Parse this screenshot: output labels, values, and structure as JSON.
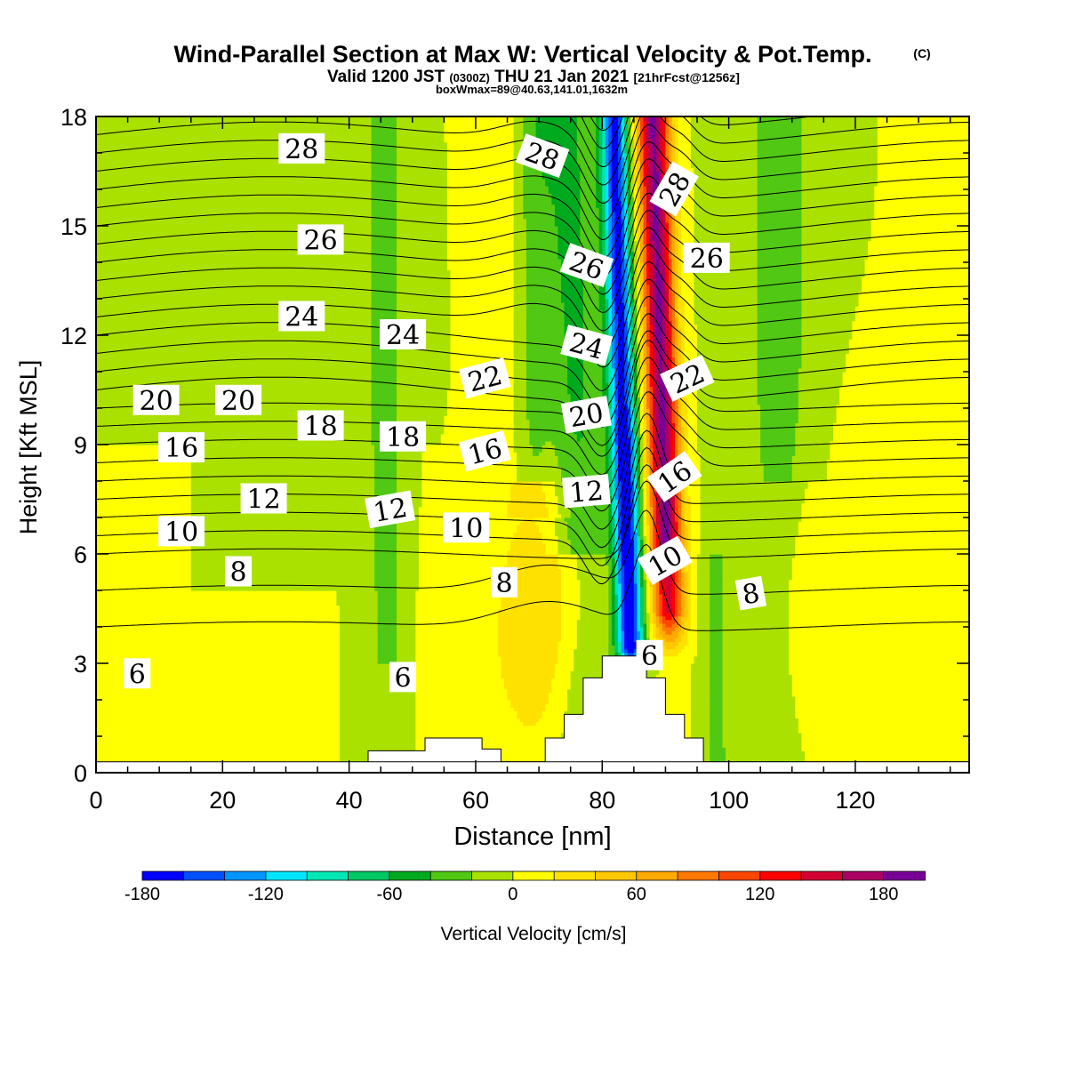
{
  "chart_data": {
    "type": "heatmap",
    "title": "Wind-Parallel Section at Max W: Vertical Velocity & Pot.Temp.",
    "title_mark": "(C)",
    "subtitle_prefix": "Valid 1200 JST",
    "subtitle_z": "(0300Z)",
    "subtitle_date": "THU 21 Jan 2021",
    "subtitle_fcst": "[21hrFcst@1256z]",
    "subtitle2": "boxWmax=89@40.63,141.01,1632m",
    "xlabel": "Distance [nm]",
    "ylabel": "Height [Kft MSL]",
    "xlim": [
      0,
      138
    ],
    "ylim": [
      0,
      18
    ],
    "x_ticks": [
      0,
      20,
      40,
      60,
      80,
      100,
      120
    ],
    "y_ticks": [
      0,
      3,
      6,
      9,
      12,
      15,
      18
    ],
    "colorbar": {
      "label": "Vertical Velocity [cm/s]",
      "range": [
        -180,
        200
      ],
      "step": 20,
      "tick_values": [
        -180,
        -120,
        -60,
        0,
        60,
        120,
        180
      ],
      "colors": [
        "#0000ff",
        "#0050ff",
        "#0096ff",
        "#00e6ff",
        "#00e6b4",
        "#00c864",
        "#00aa1e",
        "#50c814",
        "#aae100",
        "#ffff00",
        "#ffe100",
        "#ffc800",
        "#ffaa00",
        "#ff7800",
        "#ff4600",
        "#ff0000",
        "#d20032",
        "#aa0064",
        "#780096"
      ]
    },
    "terrain": [
      [
        41,
        0
      ],
      [
        41,
        0.25
      ],
      [
        43,
        0.25
      ],
      [
        43,
        0.6
      ],
      [
        52,
        0.6
      ],
      [
        52,
        0.95
      ],
      [
        61,
        0.95
      ],
      [
        61,
        0.65
      ],
      [
        64,
        0.65
      ],
      [
        64,
        0.3
      ],
      [
        71,
        0.3
      ],
      [
        71,
        0.95
      ],
      [
        74,
        0.95
      ],
      [
        74,
        1.6
      ],
      [
        77,
        1.6
      ],
      [
        77,
        2.6
      ],
      [
        80,
        2.6
      ],
      [
        80,
        3.2
      ],
      [
        83,
        3.2
      ],
      [
        83,
        3.2
      ],
      [
        87,
        3.2
      ],
      [
        87,
        2.6
      ],
      [
        90,
        2.6
      ],
      [
        90,
        1.6
      ],
      [
        93,
        1.6
      ],
      [
        93,
        0.95
      ],
      [
        96,
        0.95
      ],
      [
        96,
        0.3
      ],
      [
        138,
        0.3
      ],
      [
        138,
        0
      ]
    ],
    "theta_levels": [
      4,
      5,
      6,
      6.5,
      7,
      7.5,
      8,
      8.5,
      9,
      9.5,
      10,
      10.5,
      11,
      11.5,
      12,
      12.5,
      13,
      13.5,
      14,
      14.5,
      15,
      15.5,
      16,
      16.5,
      17,
      17.5,
      18,
      18.5,
      19,
      19.5,
      20,
      20.5,
      21,
      21.5,
      22,
      22.5,
      23,
      23.5,
      24,
      24.5,
      25,
      25.5,
      26,
      26.5,
      27,
      27.5,
      28,
      28.5,
      29
    ],
    "contour_labels": [
      {
        "text": "28",
        "x": 32.5,
        "y": 17.1,
        "angle": 0
      },
      {
        "text": "26",
        "x": 35.5,
        "y": 14.6,
        "angle": 0
      },
      {
        "text": "24",
        "x": 32.5,
        "y": 12.5,
        "angle": 0
      },
      {
        "text": "24",
        "x": 48.5,
        "y": 12.0,
        "angle": 0
      },
      {
        "text": "20",
        "x": 9.5,
        "y": 10.2,
        "angle": 0
      },
      {
        "text": "20",
        "x": 22.5,
        "y": 10.2,
        "angle": 0
      },
      {
        "text": "18",
        "x": 35.5,
        "y": 9.5,
        "angle": 0
      },
      {
        "text": "18",
        "x": 48.5,
        "y": 9.2,
        "angle": 0
      },
      {
        "text": "16",
        "x": 13.5,
        "y": 8.9,
        "angle": 0
      },
      {
        "text": "12",
        "x": 26.5,
        "y": 7.5,
        "angle": 0
      },
      {
        "text": "12",
        "x": 46.5,
        "y": 7.2,
        "angle": -10
      },
      {
        "text": "10",
        "x": 13.5,
        "y": 6.6,
        "angle": 0
      },
      {
        "text": "10",
        "x": 58.5,
        "y": 6.7,
        "angle": 0
      },
      {
        "text": "8",
        "x": 22.5,
        "y": 5.5,
        "angle": 0
      },
      {
        "text": "8",
        "x": 64.5,
        "y": 5.2,
        "angle": 0
      },
      {
        "text": "8",
        "x": 103.5,
        "y": 4.9,
        "angle": -10
      },
      {
        "text": "6",
        "x": 6.5,
        "y": 2.7,
        "angle": 0
      },
      {
        "text": "6",
        "x": 48.5,
        "y": 2.6,
        "angle": 0
      },
      {
        "text": "6",
        "x": 87.5,
        "y": 3.2,
        "angle": 0
      },
      {
        "text": "28",
        "x": 70.5,
        "y": 16.9,
        "angle": 20
      },
      {
        "text": "26",
        "x": 77.5,
        "y": 13.9,
        "angle": 20
      },
      {
        "text": "24",
        "x": 77.5,
        "y": 11.7,
        "angle": 15
      },
      {
        "text": "22",
        "x": 61.5,
        "y": 10.8,
        "angle": -15
      },
      {
        "text": "20",
        "x": 77.5,
        "y": 9.8,
        "angle": -10
      },
      {
        "text": "16",
        "x": 61.5,
        "y": 8.8,
        "angle": -15
      },
      {
        "text": "12",
        "x": 77.5,
        "y": 7.7,
        "angle": -5
      },
      {
        "text": "28",
        "x": 91.5,
        "y": 16.0,
        "angle": -60
      },
      {
        "text": "26",
        "x": 96.5,
        "y": 14.1,
        "angle": 0
      },
      {
        "text": "22",
        "x": 93.5,
        "y": 10.8,
        "angle": -25
      },
      {
        "text": "16",
        "x": 91.5,
        "y": 8.1,
        "angle": -35
      },
      {
        "text": "10",
        "x": 90.0,
        "y": 5.8,
        "angle": -30
      }
    ]
  }
}
